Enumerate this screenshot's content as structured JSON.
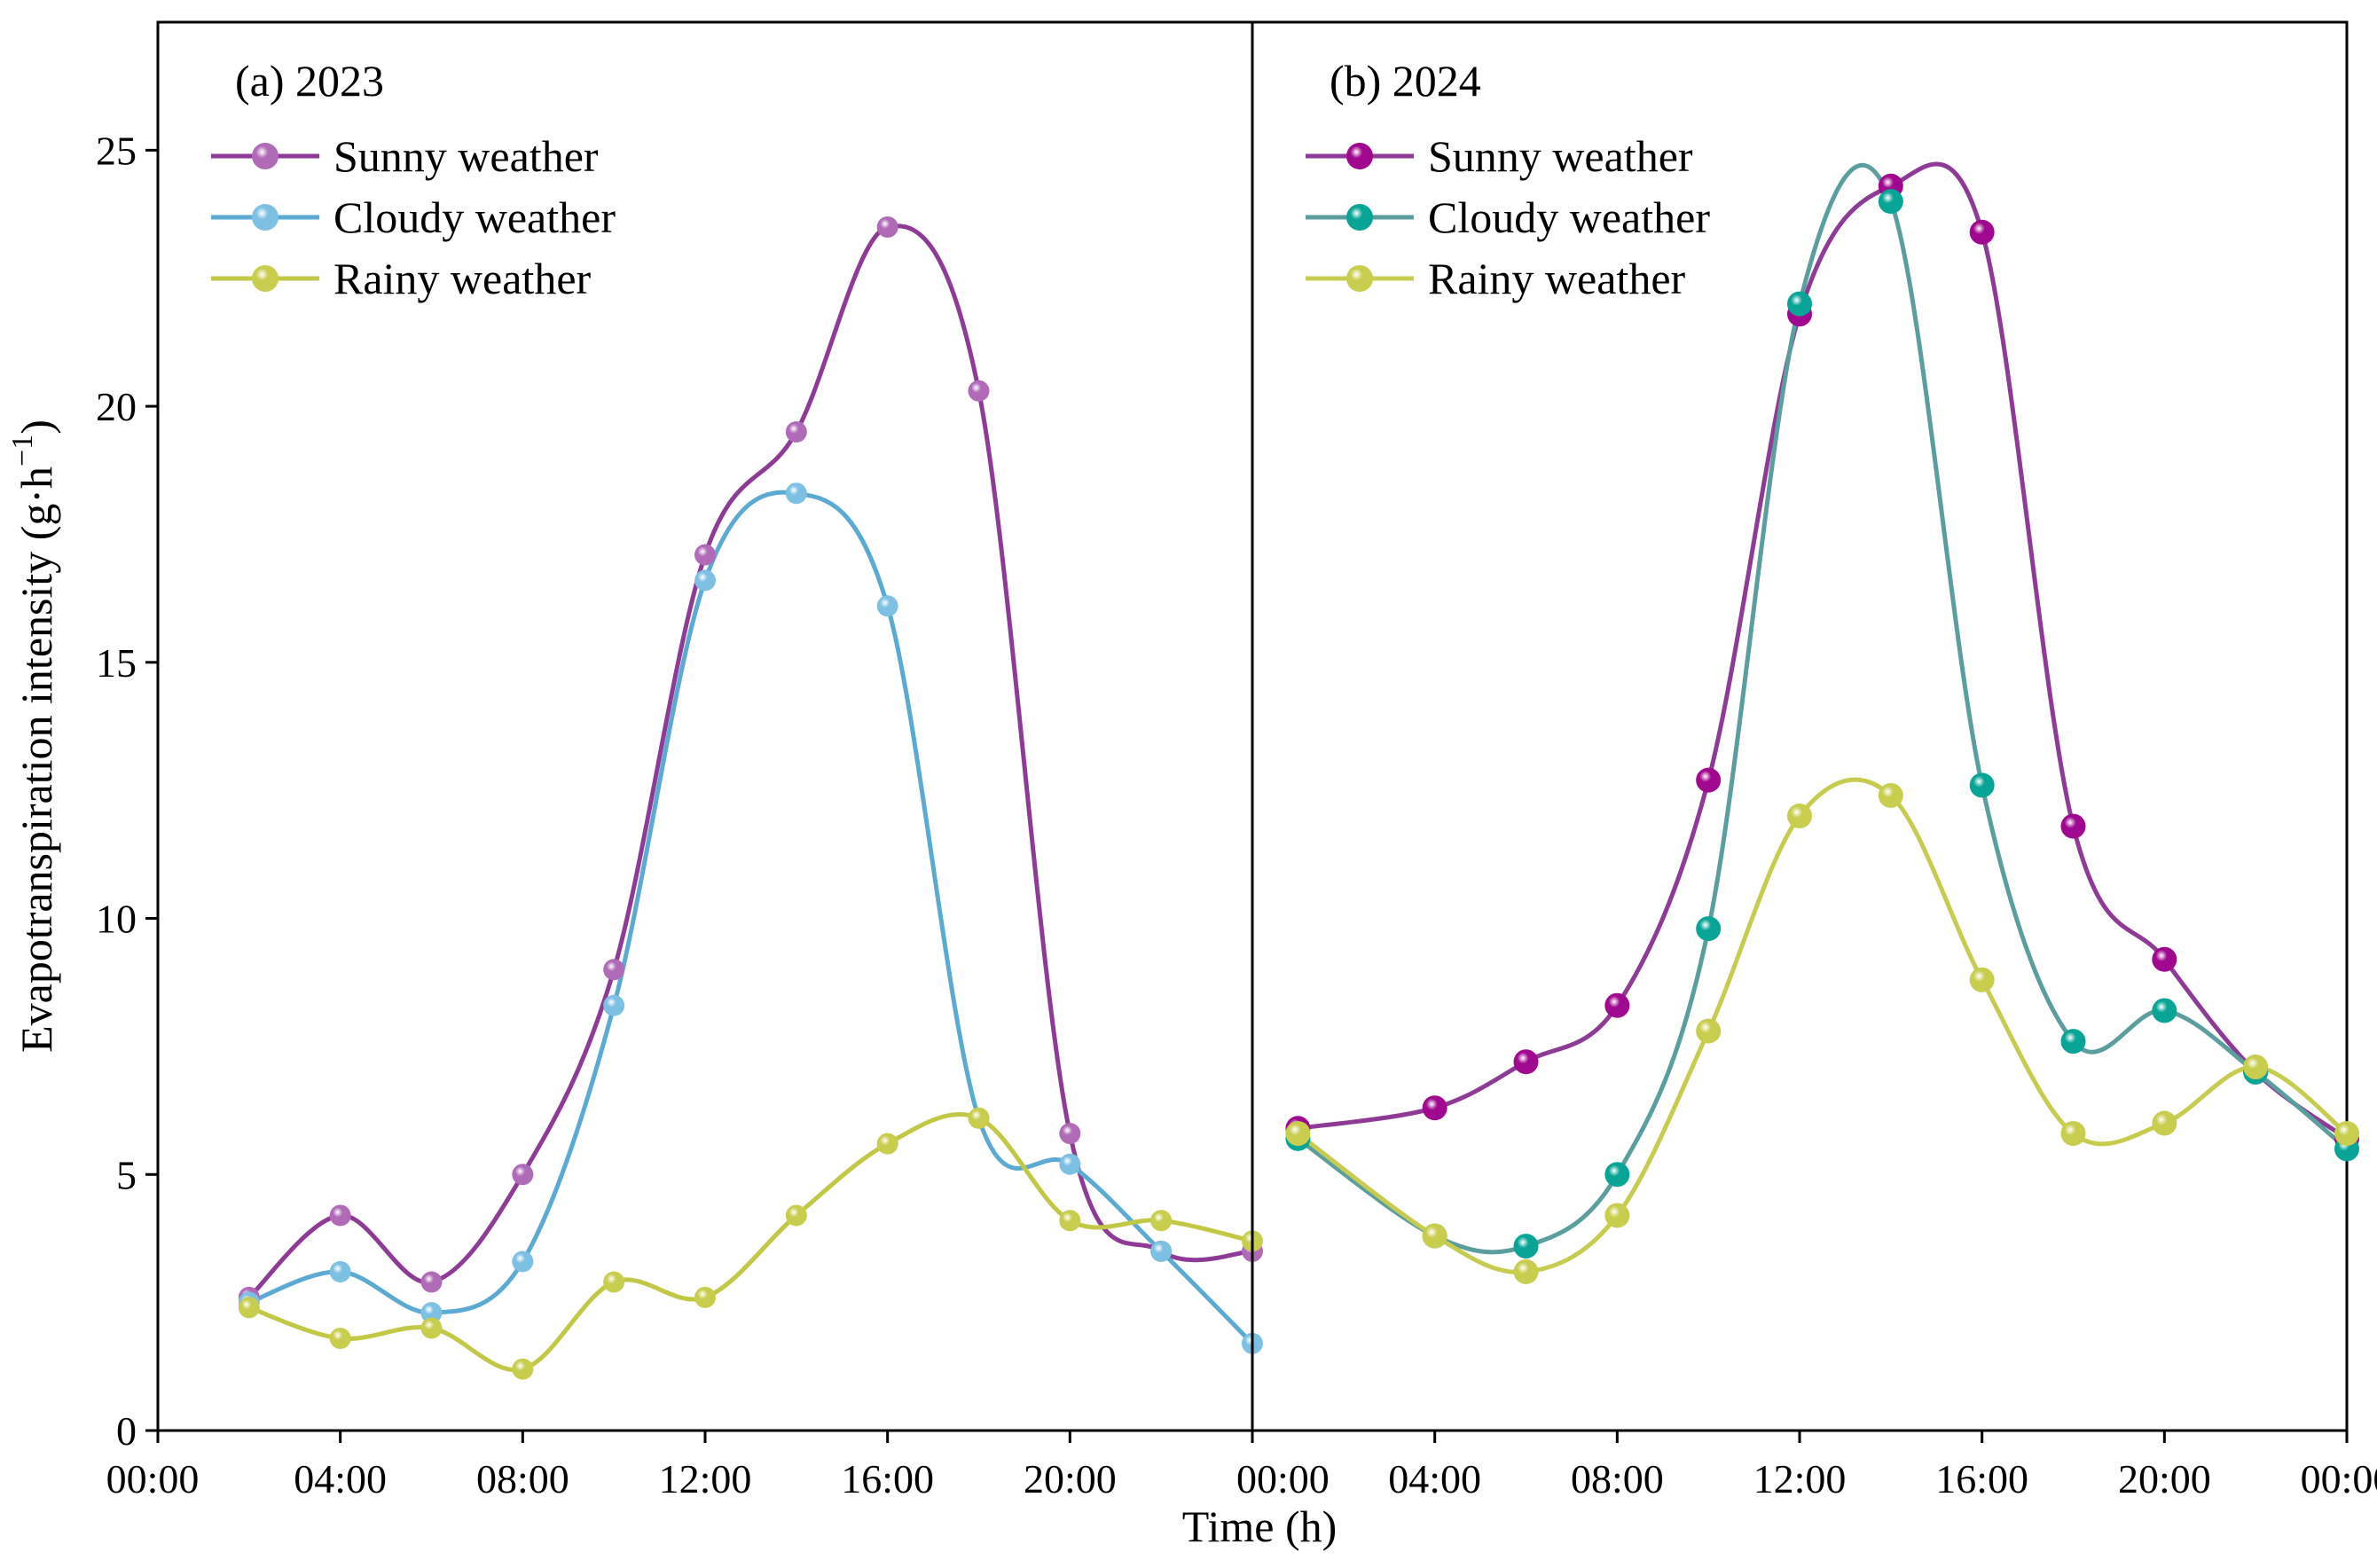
{
  "figure": {
    "ylabel": "Evapotranspiration intensity (g·h",
    "ylabel_sup": "−1",
    "ylabel_close": ")",
    "xlabel": "Time (h)"
  },
  "chart_data": [
    {
      "type": "line",
      "title": "(a) 2023",
      "xlabel": "Time (h)",
      "ylabel": "Evapotranspiration intensity (g·h−1)",
      "x_unit": "hours",
      "xlim": [
        0,
        24
      ],
      "ylim": [
        0,
        27.5
      ],
      "xticks": [
        0,
        4,
        8,
        12,
        16,
        20,
        24
      ],
      "xtick_labels": [
        "00:00",
        "04:00",
        "08:00",
        "12:00",
        "16:00",
        "20:00",
        "00:00"
      ],
      "yticks": [
        0,
        5,
        10,
        15,
        20,
        25
      ],
      "ytick_labels": [
        "0",
        "5",
        "10",
        "15",
        "20",
        "25"
      ],
      "legend_position": "top-left",
      "series": [
        {
          "name": "Sunny weather",
          "color": "#8e3a96",
          "marker_color": "#b06ab8",
          "x": [
            2,
            4,
            6,
            8,
            10,
            12,
            14,
            16,
            18,
            20,
            22,
            24
          ],
          "y": [
            2.6,
            4.2,
            2.9,
            5.0,
            9.0,
            17.1,
            19.5,
            23.5,
            20.3,
            5.8,
            3.5,
            3.5
          ]
        },
        {
          "name": "Cloudy weather",
          "color": "#5aaad3",
          "marker_color": "#7cc0e4",
          "x": [
            2,
            4,
            6,
            8,
            10,
            12,
            14,
            16,
            18,
            20,
            22,
            24
          ],
          "y": [
            2.5,
            3.1,
            2.3,
            3.3,
            8.3,
            16.6,
            18.3,
            16.1,
            6.1,
            5.2,
            3.5,
            1.7
          ]
        },
        {
          "name": "Rainy weather",
          "color": "#c2c744",
          "marker_color": "#c9cd4e",
          "x": [
            2,
            4,
            6,
            8,
            10,
            12,
            14,
            16,
            18,
            20,
            22,
            24
          ],
          "y": [
            2.4,
            1.8,
            2.0,
            1.2,
            2.9,
            2.6,
            4.2,
            5.6,
            6.1,
            4.1,
            4.1,
            3.7
          ]
        }
      ]
    },
    {
      "type": "line",
      "title": "(b) 2024",
      "xlabel": "Time (h)",
      "ylabel": "Evapotranspiration intensity (g·h−1)",
      "x_unit": "hours",
      "xlim": [
        0,
        24
      ],
      "ylim": [
        0,
        27.5
      ],
      "xticks": [
        0,
        4,
        8,
        12,
        16,
        20,
        24
      ],
      "xtick_labels": [
        "00:00",
        "04:00",
        "08:00",
        "12:00",
        "16:00",
        "20:00",
        "00:00"
      ],
      "legend_position": "top-left",
      "series": [
        {
          "name": "Sunny weather",
          "color": "#8e3a96",
          "marker_color": "#a0088f",
          "x": [
            1,
            4,
            6,
            8,
            10,
            12,
            14,
            16,
            18,
            20,
            22,
            24
          ],
          "y": [
            5.9,
            6.3,
            7.2,
            8.3,
            12.7,
            21.8,
            24.3,
            23.4,
            11.8,
            9.2,
            7.0,
            5.7
          ]
        },
        {
          "name": "Cloudy weather",
          "color": "#5a9ea0",
          "marker_color": "#08a496",
          "x": [
            1,
            4,
            6,
            8,
            10,
            12,
            14,
            16,
            18,
            20,
            22,
            24
          ],
          "y": [
            5.7,
            3.8,
            3.6,
            5.0,
            9.8,
            22.0,
            24.0,
            12.6,
            7.6,
            8.2,
            7.0,
            5.5
          ]
        },
        {
          "name": "Rainy weather",
          "color": "#c8cc4e",
          "marker_color": "#c9cd4e",
          "x": [
            1,
            4,
            6,
            8,
            10,
            12,
            14,
            16,
            18,
            20,
            22,
            24
          ],
          "y": [
            5.8,
            3.8,
            3.1,
            4.2,
            7.8,
            12.0,
            12.4,
            8.8,
            5.8,
            6.0,
            7.1,
            5.8
          ]
        }
      ]
    }
  ]
}
